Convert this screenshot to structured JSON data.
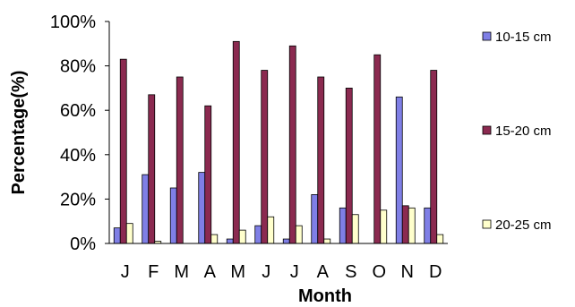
{
  "chart_data": {
    "type": "bar",
    "title": "",
    "xlabel": "Month",
    "ylabel": "Percentage(%)",
    "ylim": [
      0,
      100
    ],
    "yticks": [
      "0%",
      "20%",
      "40%",
      "60%",
      "80%",
      "100%"
    ],
    "grid": false,
    "legend_position": "right",
    "categories": [
      "J",
      "F",
      "M",
      "A",
      "M",
      "J",
      "J",
      "A",
      "S",
      "O",
      "N",
      "D"
    ],
    "series": [
      {
        "name": "10-15 cm",
        "color": "#7f7fe6",
        "values": [
          7,
          31,
          25,
          32,
          2,
          8,
          2,
          22,
          16,
          0,
          66,
          16
        ]
      },
      {
        "name": "15-20 cm",
        "color": "#8b2a50",
        "values": [
          83,
          67,
          75,
          62,
          91,
          78,
          89,
          75,
          70,
          85,
          17,
          78
        ]
      },
      {
        "name": "20-25 cm",
        "color": "#ffffcc",
        "values": [
          9,
          1,
          0,
          4,
          6,
          12,
          8,
          2,
          13,
          15,
          16,
          4
        ]
      }
    ]
  }
}
